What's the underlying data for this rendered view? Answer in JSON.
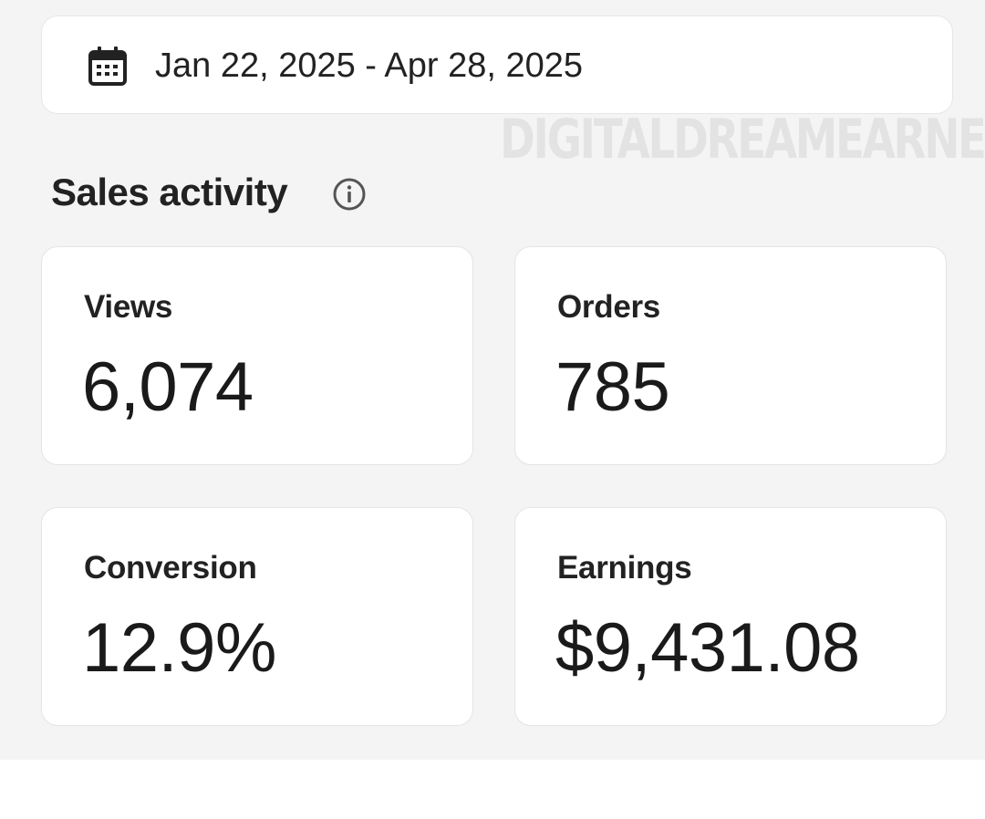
{
  "date_range": {
    "label": "Jan 22, 2025 - Apr 28, 2025",
    "icon": "calendar-icon"
  },
  "watermark": "DIGITALDREAMEARNER",
  "sales_activity": {
    "title": "Sales activity",
    "info_icon": "info-icon",
    "cards": [
      {
        "label": "Views",
        "value": "6,074"
      },
      {
        "label": "Orders",
        "value": "785"
      },
      {
        "label": "Conversion",
        "value": "12.9%"
      },
      {
        "label": "Earnings",
        "value": "$9,431.08"
      }
    ]
  },
  "colors": {
    "background": "#f4f4f4",
    "card": "#ffffff",
    "text": "#1f1f1f",
    "watermark": "#d6d6d6"
  }
}
